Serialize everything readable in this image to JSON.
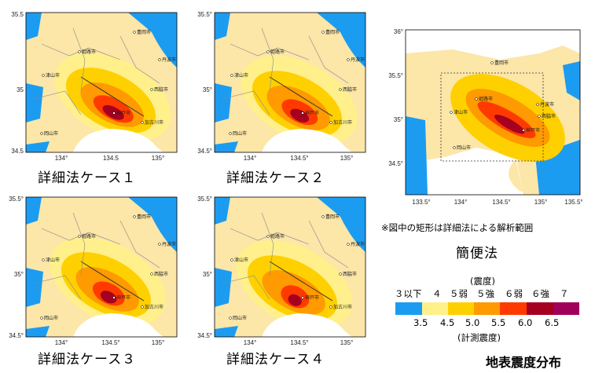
{
  "panels": [
    {
      "caption": "詳細法ケース１",
      "y_ticks": [
        "35.5",
        "35",
        "34.5"
      ],
      "x_ticks": [
        "134°",
        "134.5",
        "135°"
      ],
      "cities": [
        "豊岡市",
        "姫路市",
        "津山市",
        "岡山市",
        "丹波市",
        "西脇市",
        "神戸市",
        "加古川市"
      ]
    },
    {
      "caption": "詳細法ケース２",
      "y_ticks": [
        "35.5°",
        "35°",
        "34.5°"
      ],
      "x_ticks": [
        "134°",
        "134.5°",
        "135°"
      ],
      "cities": [
        "豊岡市",
        "姫路市",
        "津山市",
        "岡山市",
        "丹波市",
        "西脇市",
        "神戸市",
        "加古川市"
      ]
    },
    {
      "caption": "詳細法ケース３",
      "y_ticks": [
        "35.5°",
        "35°",
        "34.5°"
      ],
      "x_ticks": [
        "134°",
        "134.5°",
        "135°"
      ],
      "cities": [
        "豊岡市",
        "姫路市",
        "津山市",
        "岡山市",
        "丹波市",
        "西脇市",
        "神戸市",
        "加古川市"
      ]
    },
    {
      "caption": "詳細法ケース４",
      "y_ticks": [
        "35.5°",
        "35°",
        "34.5°"
      ],
      "x_ticks": [
        "134°",
        "134.5°",
        "135°"
      ],
      "cities": [
        "豊岡市",
        "姫路市",
        "津山市",
        "岡山市",
        "丹波市",
        "西脇市",
        "神戸市",
        "加古川市"
      ]
    }
  ],
  "simple_panel": {
    "caption": "簡便法",
    "note": "※図中の矩形は詳細法による解析範囲",
    "y_ticks": [
      "36°",
      "35.5°",
      "35°",
      "34.5°"
    ],
    "x_ticks": [
      "133.5°",
      "134°",
      "134.5°",
      "135°",
      "135.5°"
    ],
    "cities": [
      "豊岡市",
      "姫路市",
      "津山市",
      "岡山市",
      "丹波市",
      "西脇市",
      "神戸市"
    ]
  },
  "legend": {
    "title_top": "(震度)",
    "intensity_labels": [
      "３以下",
      "４",
      "５弱",
      "５強",
      "６弱",
      "６強",
      "７"
    ],
    "boundary_values": [
      "3.5",
      "4.5",
      "5.0",
      "5.5",
      "6.0",
      "6.5"
    ],
    "title_bottom": "(計測震度)",
    "colors": [
      "#1c9cf0",
      "#fff08c",
      "#ffd000",
      "#ff9a00",
      "#ff3a00",
      "#a50020",
      "#a0005a"
    ]
  },
  "figure_title": "地表震度分布"
}
